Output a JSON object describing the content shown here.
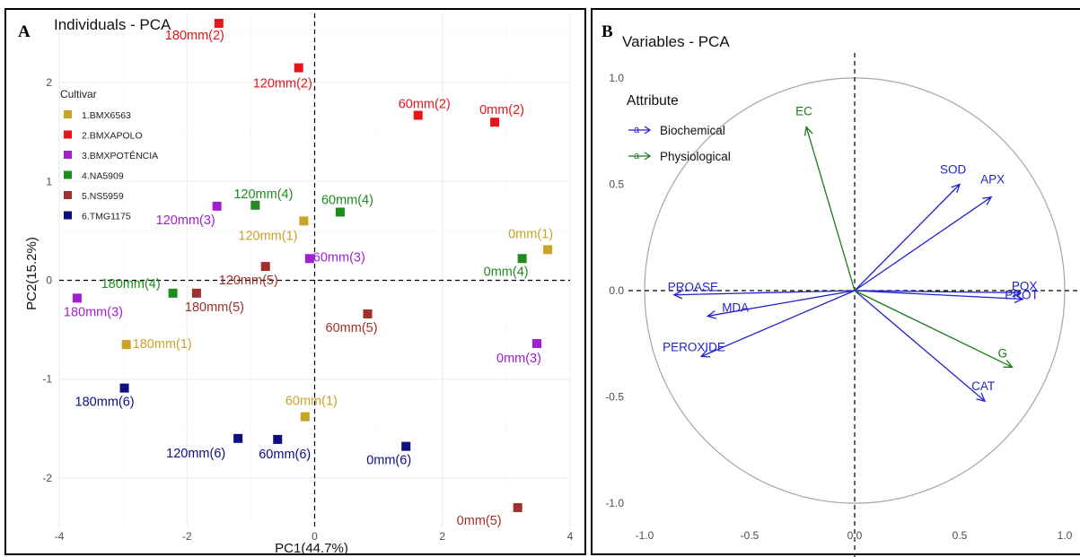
{
  "panelA": {
    "letter": "A",
    "title": "Individuals - PCA",
    "xlabel": "PC1(44.7%)",
    "ylabel": "PC2(15.2%)",
    "legend_title": "Cultivar"
  },
  "panelB": {
    "letter": "B",
    "title": "Variables - PCA",
    "legend_title": "Attribute"
  },
  "chart_data": [
    {
      "type": "scatter",
      "title": "Individuals - PCA",
      "xlabel": "PC1(44.7%)",
      "ylabel": "PC2(15.2%)",
      "xlim": [
        -4,
        4
      ],
      "ylim": [
        -2.5,
        2.7
      ],
      "xticks": [
        -4,
        -2,
        0,
        2,
        4
      ],
      "yticks": [
        -2,
        -1,
        0,
        1,
        2
      ],
      "grid": true,
      "legend_title": "Cultivar",
      "legend_position": "top-left",
      "series": [
        {
          "name": "1.BMX6563",
          "color": "#C9A227",
          "points": [
            {
              "label": "0mm(1)",
              "x": 3.65,
              "y": 0.31
            },
            {
              "label": "120mm(1)",
              "x": -0.17,
              "y": 0.6
            },
            {
              "label": "180mm(1)",
              "x": -2.95,
              "y": -0.65
            },
            {
              "label": "60mm(1)",
              "x": -0.15,
              "y": -1.38
            }
          ]
        },
        {
          "name": "2.BMXAPOLO",
          "color": "#E8141B",
          "points": [
            {
              "label": "180mm(2)",
              "x": -1.5,
              "y": 2.6
            },
            {
              "label": "120mm(2)",
              "x": -0.25,
              "y": 2.15
            },
            {
              "label": "60mm(2)",
              "x": 1.62,
              "y": 1.67
            },
            {
              "label": "0mm(2)",
              "x": 2.82,
              "y": 1.6
            }
          ]
        },
        {
          "name": "3.BMXPOTÊNCIA",
          "color": "#A020D0",
          "points": [
            {
              "label": "120mm(3)",
              "x": -1.53,
              "y": 0.75
            },
            {
              "label": "60mm(3)",
              "x": -0.08,
              "y": 0.22
            },
            {
              "label": "180mm(3)",
              "x": -3.72,
              "y": -0.18
            },
            {
              "label": "0mm(3)",
              "x": 3.48,
              "y": -0.64
            }
          ]
        },
        {
          "name": "4.NA5909",
          "color": "#1E8C1E",
          "points": [
            {
              "label": "120mm(4)",
              "x": -0.93,
              "y": 0.76
            },
            {
              "label": "60mm(4)",
              "x": 0.4,
              "y": 0.69
            },
            {
              "label": "0mm(4)",
              "x": 3.25,
              "y": 0.22
            },
            {
              "label": "180mm(4)",
              "x": -2.22,
              "y": -0.13
            }
          ]
        },
        {
          "name": "5.NS5959",
          "color": "#A0302B",
          "points": [
            {
              "label": "120mm(5)",
              "x": -0.77,
              "y": 0.14
            },
            {
              "label": "180mm(5)",
              "x": -1.85,
              "y": -0.13
            },
            {
              "label": "60mm(5)",
              "x": 0.83,
              "y": -0.34
            },
            {
              "label": "0mm(5)",
              "x": 3.18,
              "y": -2.3
            }
          ]
        },
        {
          "name": "6.TMG1175",
          "color": "#0E0E80",
          "points": [
            {
              "label": "180mm(6)",
              "x": -2.98,
              "y": -1.09
            },
            {
              "label": "120mm(6)",
              "x": -1.2,
              "y": -1.6
            },
            {
              "label": "60mm(6)",
              "x": -0.58,
              "y": -1.61
            },
            {
              "label": "0mm(6)",
              "x": 1.43,
              "y": -1.68
            }
          ]
        }
      ]
    },
    {
      "type": "biplot",
      "title": "Variables - PCA",
      "xlim": [
        -1.0,
        1.0
      ],
      "ylim": [
        -1.0,
        1.0
      ],
      "xticks": [
        -1.0,
        -0.5,
        0.0,
        0.5,
        1.0
      ],
      "yticks": [
        -1.0,
        -0.5,
        0.0,
        0.5,
        1.0
      ],
      "tick_labels": [
        "-1.0",
        "-0.5",
        "0.0",
        "0.5",
        "1.0"
      ],
      "grid": false,
      "legend_title": "Attribute",
      "legend_position": "top-left",
      "series": [
        {
          "name": "Biochemical",
          "color": "#2222CC",
          "vectors": [
            {
              "label": "SOD",
              "x": 0.5,
              "y": 0.5
            },
            {
              "label": "APX",
              "x": 0.65,
              "y": 0.44
            },
            {
              "label": "POX",
              "x": 0.79,
              "y": -0.01
            },
            {
              "label": "PROT",
              "x": 0.8,
              "y": -0.04
            },
            {
              "label": "PROASE",
              "x": -0.86,
              "y": -0.02
            },
            {
              "label": "MDA",
              "x": -0.7,
              "y": -0.12
            },
            {
              "label": "PEROXIDE",
              "x": -0.73,
              "y": -0.31
            },
            {
              "label": "CAT",
              "x": 0.62,
              "y": -0.52
            }
          ]
        },
        {
          "name": "Physiological",
          "color": "#1A7A1A",
          "vectors": [
            {
              "label": "EC",
              "x": -0.23,
              "y": 0.77
            },
            {
              "label": "G",
              "x": 0.75,
              "y": -0.36
            }
          ]
        }
      ]
    }
  ]
}
